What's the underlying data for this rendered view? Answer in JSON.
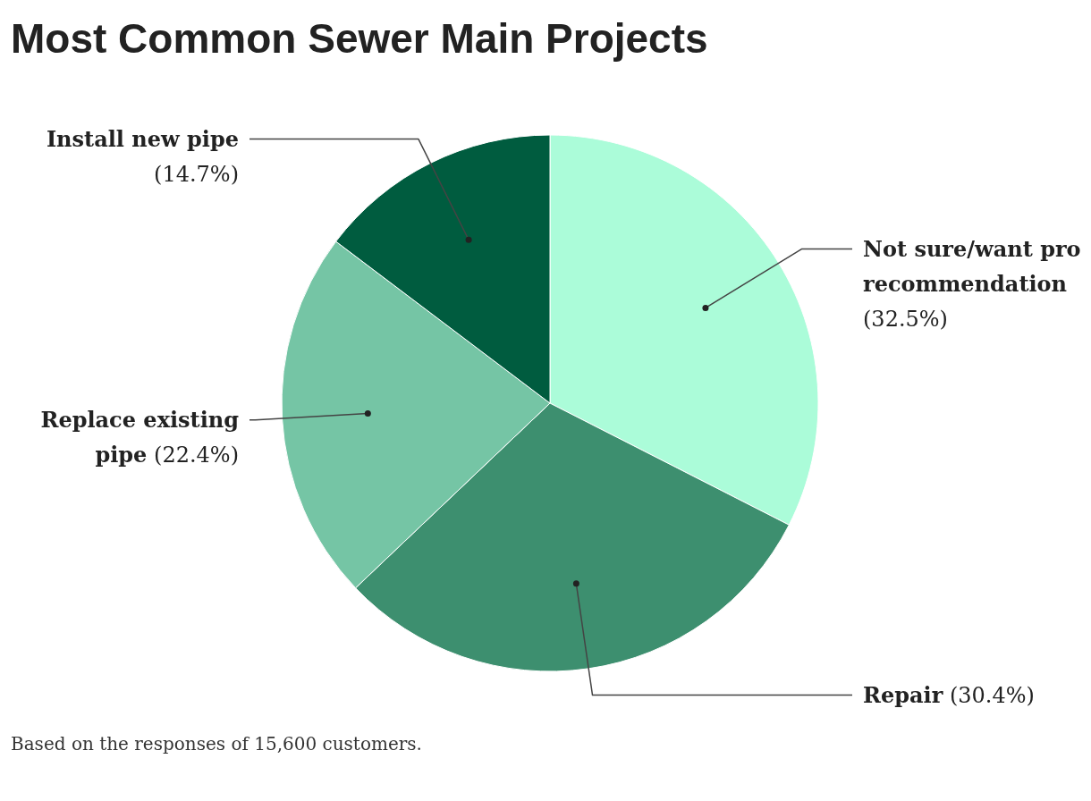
{
  "chart_data": {
    "type": "pie",
    "title": "Most Common Sewer Main Projects",
    "categories": [
      "Not sure/want pro recommendation",
      "Repair",
      "Replace existing pipe",
      "Install new pipe"
    ],
    "values": [
      32.5,
      30.4,
      22.4,
      14.7
    ],
    "value_labels": [
      "(32.5%)",
      "(30.4%)",
      "(22.4%)",
      "(14.7%)"
    ],
    "colors": [
      "#abfcd9",
      "#3d8f6f",
      "#75c5a5",
      "#005c3f"
    ],
    "annotations": [
      "Based on the responses of 15,600 customers."
    ]
  }
}
